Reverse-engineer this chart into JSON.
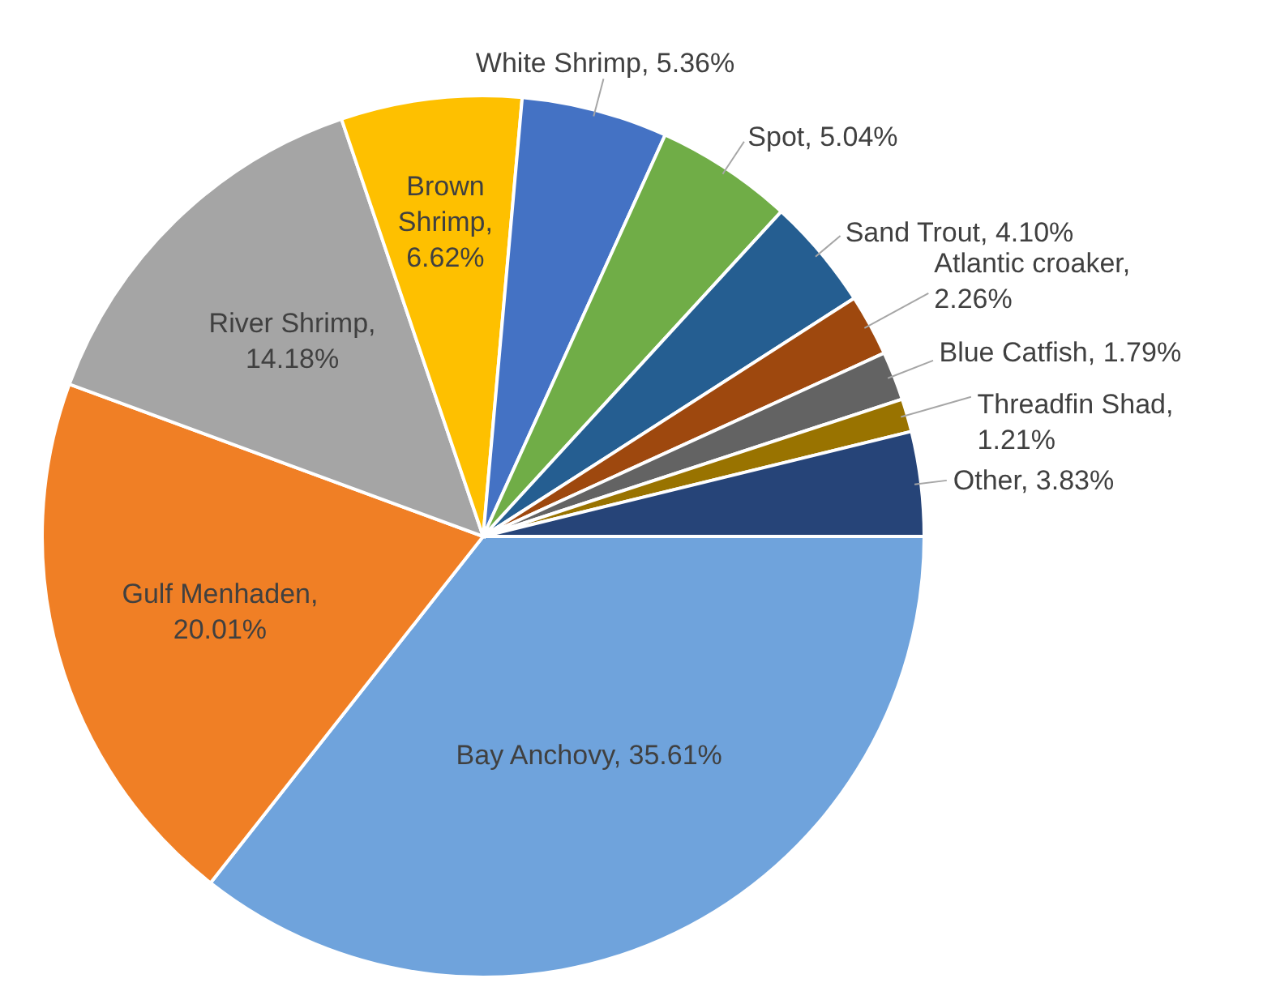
{
  "chart_data": {
    "type": "pie",
    "categories": [
      "Bay Anchovy",
      "Gulf Menhaden",
      "River Shrimp",
      "Brown Shrimp",
      "White Shrimp",
      "Spot",
      "Sand Trout",
      "Atlantic croaker",
      "Blue Catfish",
      "Threadfin Shad",
      "Other"
    ],
    "values": [
      35.61,
      20.01,
      14.18,
      6.62,
      5.36,
      5.04,
      4.1,
      2.26,
      1.79,
      1.21,
      3.83
    ],
    "value_labels": [
      ", 35.61%",
      ", 20.01%",
      ", 14.18%",
      ", 6.62%",
      ", 5.36%",
      ", 5.04%",
      ", 4.10%",
      ", 2.26%",
      ", 1.79%",
      ", 1.21%",
      ", 3.83%"
    ],
    "colors": [
      "#6fa3dc",
      "#f07f25",
      "#a5a5a5",
      "#fec000",
      "#4472c4",
      "#70ad47",
      "#255e91",
      "#9e480e",
      "#636363",
      "#997300",
      "#264478"
    ]
  }
}
